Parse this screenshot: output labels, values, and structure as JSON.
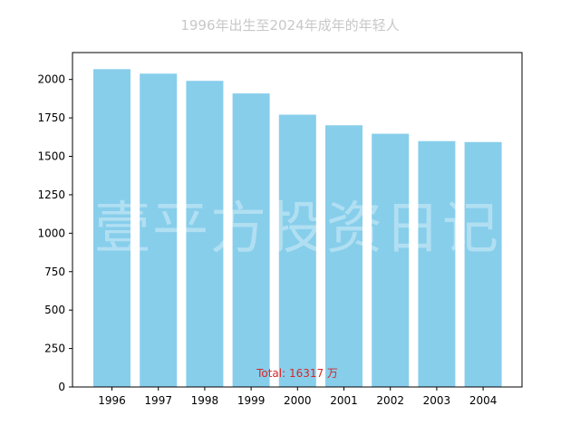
{
  "chart_data": {
    "type": "bar",
    "title": "1996年出生至2024年成年的年轻人",
    "xlabel": "",
    "ylabel": "",
    "categories": [
      "1996",
      "1997",
      "1998",
      "1999",
      "2000",
      "2001",
      "2002",
      "2003",
      "2004"
    ],
    "values": [
      2067,
      2038,
      1991,
      1909,
      1771,
      1702,
      1647,
      1599,
      1593
    ],
    "ylim": [
      0,
      2175
    ],
    "yticks": [
      0,
      250,
      500,
      750,
      1000,
      1250,
      1500,
      1750,
      2000
    ],
    "grid": false,
    "annotation": "Total: 16317 万",
    "watermark": "壹平方投资日记",
    "colors": {
      "bar": "#87ceeb",
      "title": "#c8c8c8",
      "annotation": "#d62728",
      "axis": "#000000"
    }
  }
}
